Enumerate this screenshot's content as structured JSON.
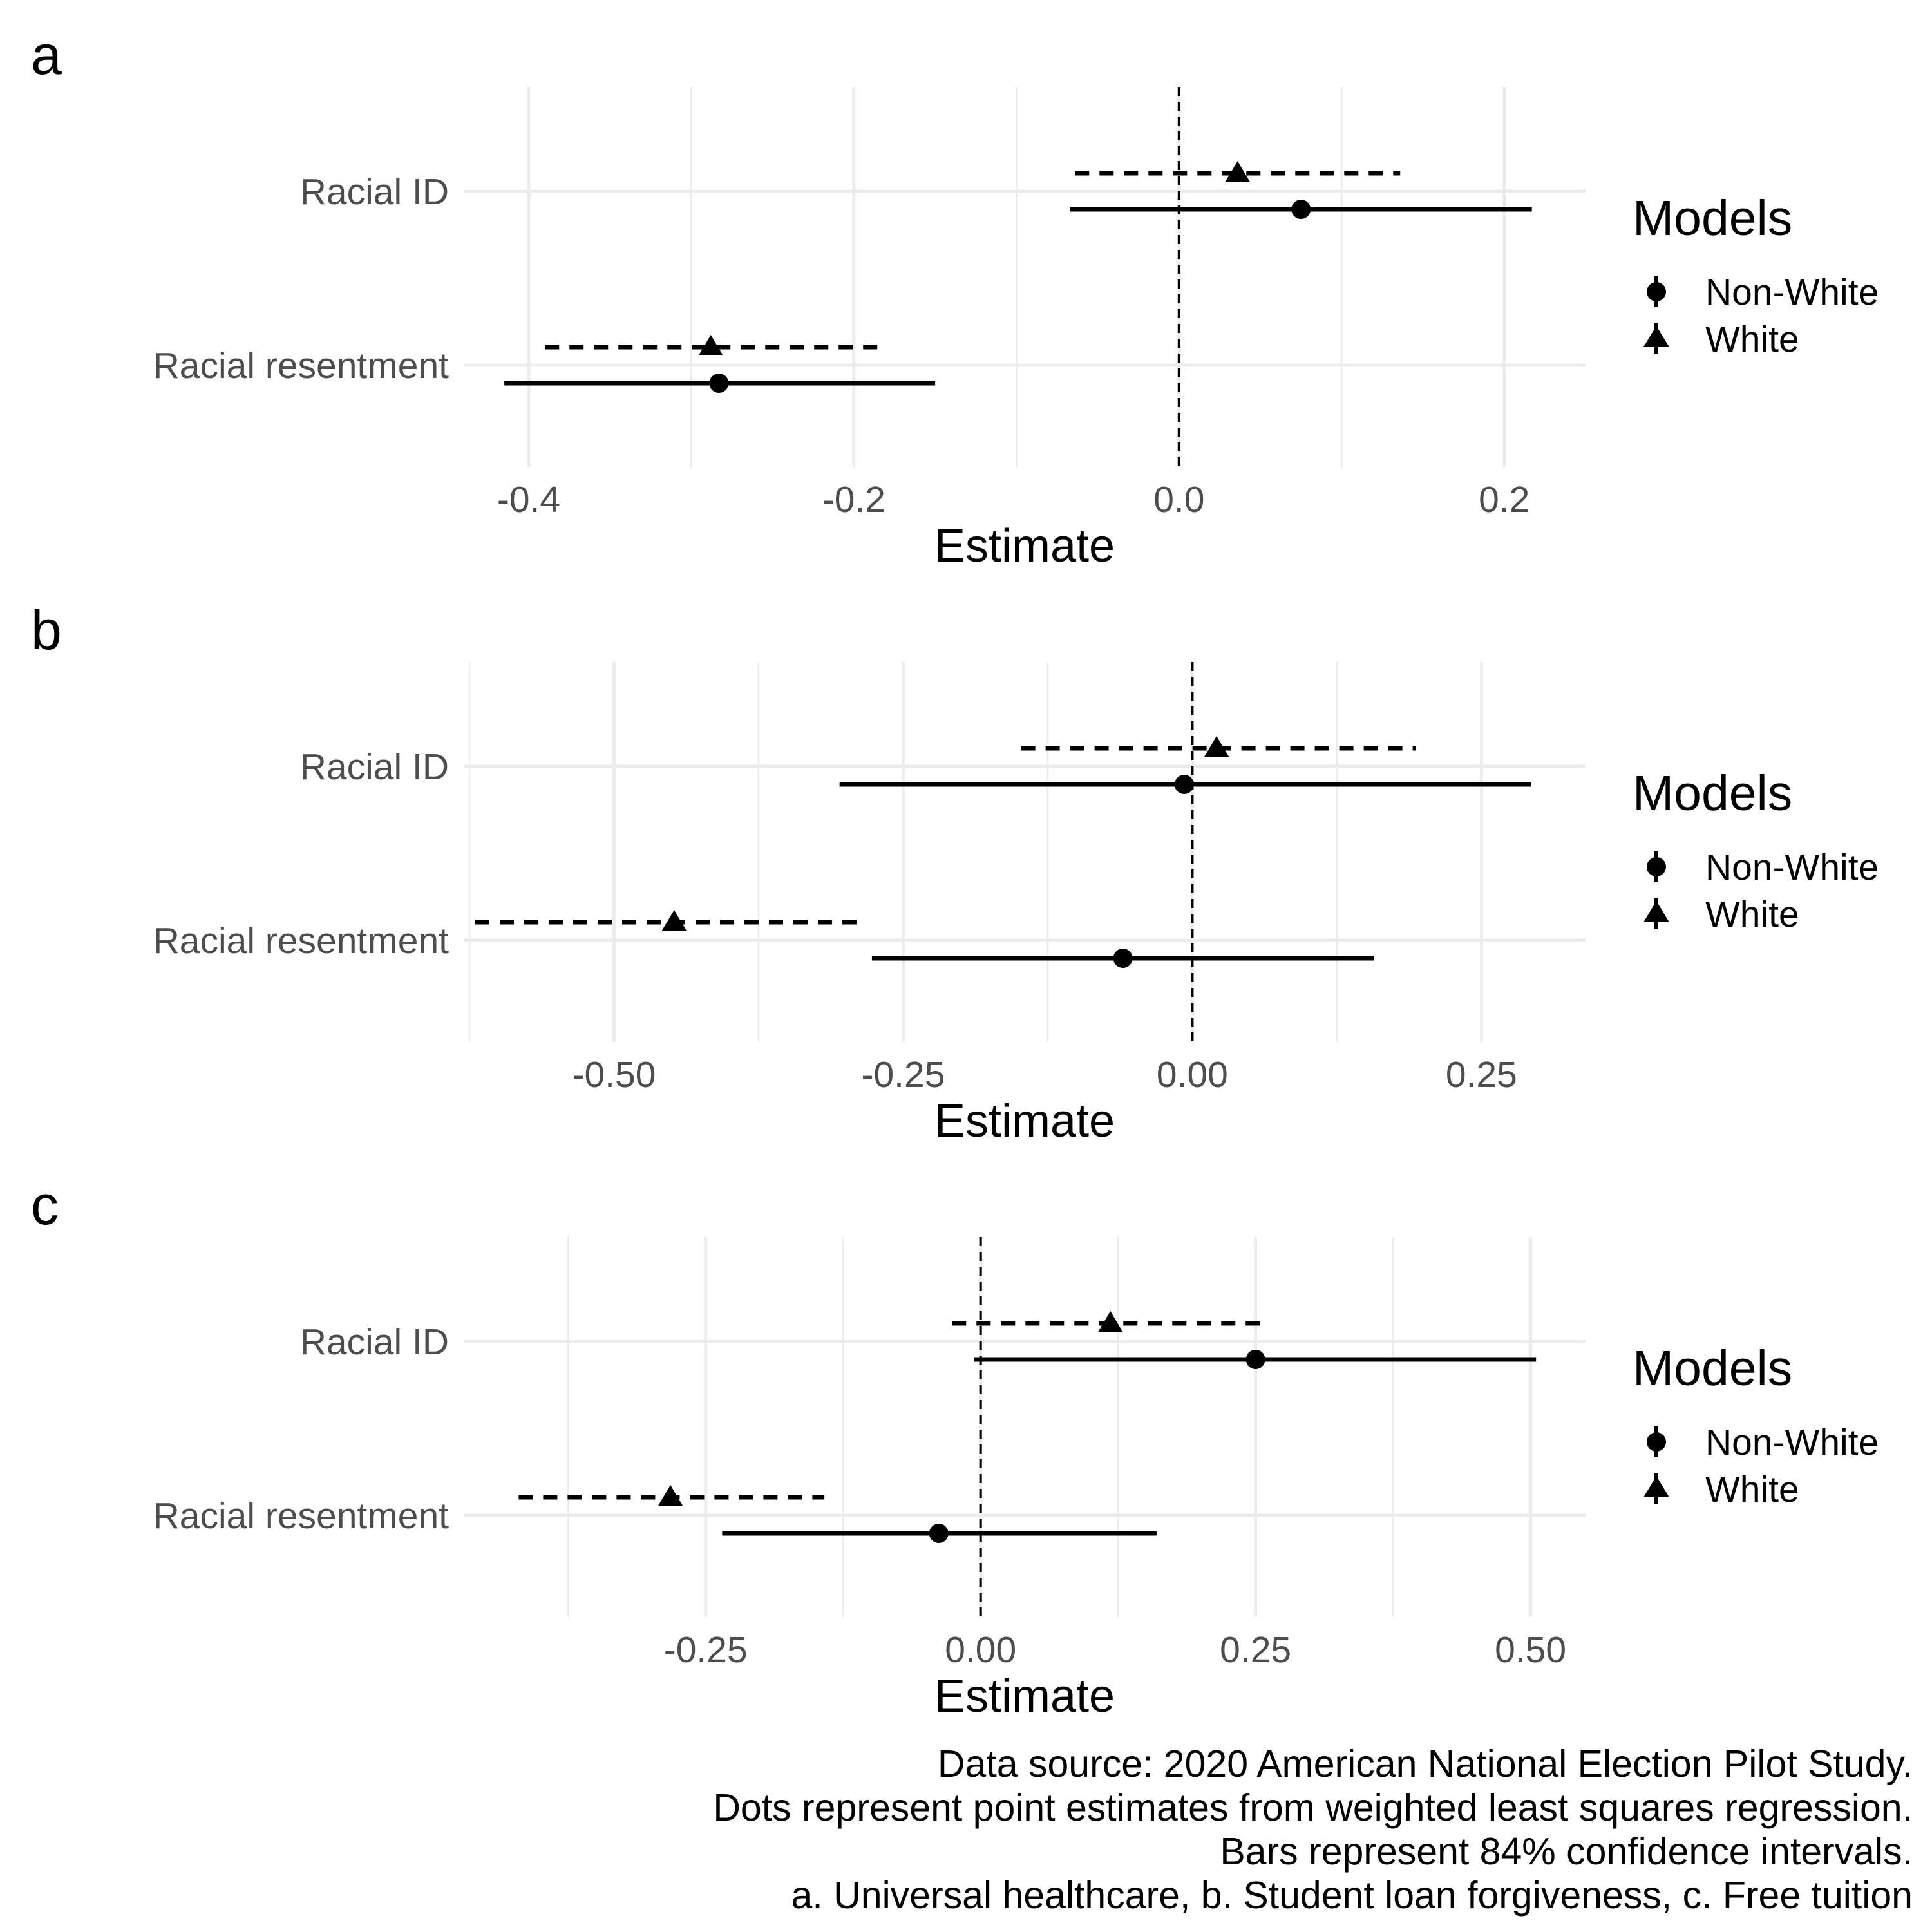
{
  "chart_data": [
    {
      "type": "dot-and-whisker",
      "panel_label": "a",
      "xlabel": "Estimate",
      "xlim": [
        -0.44,
        0.25
      ],
      "x_ticks": [
        -0.4,
        -0.2,
        0.0,
        0.2
      ],
      "x_tick_labels": [
        "-0.4",
        "-0.2",
        "0.0",
        "0.2"
      ],
      "x_minor_gridlines": [
        -0.3,
        -0.1,
        0.1
      ],
      "categories": [
        "Racial ID",
        "Racial resentment"
      ],
      "reference_line": 0,
      "legend": {
        "title": "Models",
        "position": "right"
      },
      "series": [
        {
          "name": "Non-White",
          "marker": "circle",
          "line": "solid",
          "estimates": [
            0.075,
            -0.283
          ],
          "ci_low": [
            -0.067,
            -0.415
          ],
          "ci_high": [
            0.217,
            -0.15
          ]
        },
        {
          "name": "White",
          "marker": "triangle",
          "line": "dashed",
          "estimates": [
            0.036,
            -0.288
          ],
          "ci_low": [
            -0.064,
            -0.39
          ],
          "ci_high": [
            0.136,
            -0.185
          ]
        }
      ]
    },
    {
      "type": "dot-and-whisker",
      "panel_label": "b",
      "xlabel": "Estimate",
      "xlim": [
        -0.63,
        0.34
      ],
      "x_ticks": [
        -0.5,
        -0.25,
        0.0,
        0.25
      ],
      "x_tick_labels": [
        "-0.50",
        "-0.25",
        "0.00",
        "0.25"
      ],
      "x_minor_gridlines": [
        -0.625,
        -0.375,
        -0.125,
        0.125
      ],
      "categories": [
        "Racial ID",
        "Racial resentment"
      ],
      "reference_line": 0,
      "legend": {
        "title": "Models",
        "position": "right"
      },
      "series": [
        {
          "name": "Non-White",
          "marker": "circle",
          "line": "solid",
          "estimates": [
            -0.007,
            -0.06
          ],
          "ci_low": [
            -0.305,
            -0.277
          ],
          "ci_high": [
            0.293,
            0.157
          ]
        },
        {
          "name": "White",
          "marker": "triangle",
          "line": "dashed",
          "estimates": [
            0.021,
            -0.448
          ],
          "ci_low": [
            -0.148,
            -0.62
          ],
          "ci_high": [
            0.193,
            -0.283
          ]
        }
      ]
    },
    {
      "type": "dot-and-whisker",
      "panel_label": "c",
      "xlabel": "Estimate",
      "xlim": [
        -0.47,
        0.55
      ],
      "x_ticks": [
        -0.25,
        0.0,
        0.25,
        0.5
      ],
      "x_tick_labels": [
        "-0.25",
        "0.00",
        "0.25",
        "0.50"
      ],
      "x_minor_gridlines": [
        -0.375,
        -0.125,
        0.125,
        0.375
      ],
      "categories": [
        "Racial ID",
        "Racial resentment"
      ],
      "reference_line": 0,
      "legend": {
        "title": "Models",
        "position": "right"
      },
      "series": [
        {
          "name": "Non-White",
          "marker": "circle",
          "line": "solid",
          "estimates": [
            0.25,
            -0.038
          ],
          "ci_low": [
            -0.006,
            -0.235
          ],
          "ci_high": [
            0.505,
            0.16
          ]
        },
        {
          "name": "White",
          "marker": "triangle",
          "line": "dashed",
          "estimates": [
            0.118,
            -0.282
          ],
          "ci_low": [
            -0.026,
            -0.42
          ],
          "ci_high": [
            0.258,
            -0.142
          ]
        }
      ]
    }
  ],
  "caption": [
    "Data source: 2020 American National Election Pilot Study.",
    "Dots represent point estimates from weighted least squares regression.",
    "Bars represent 84% confidence intervals.",
    "a. Universal healthcare, b. Student loan forgiveness, c. Free tuition"
  ],
  "colors": {
    "ink": "#000000",
    "grid": "#ebebeb",
    "tick_text": "#4d4d4d"
  }
}
